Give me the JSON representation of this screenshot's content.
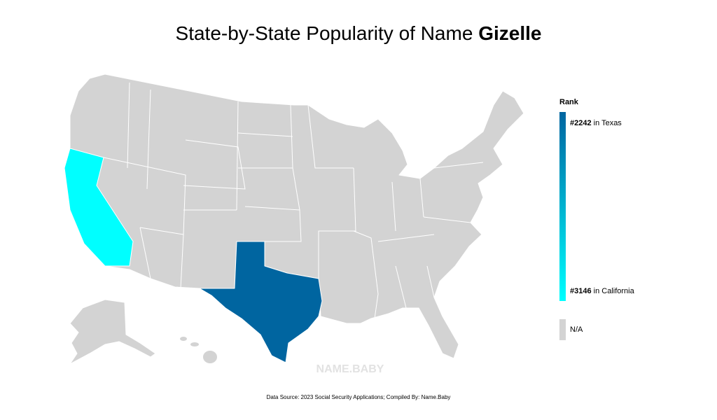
{
  "title": {
    "text": "State-by-State Popularity of Name ",
    "name": "Gizelle"
  },
  "map": {
    "na_color": "#d3d3d3",
    "high_color": "#0065a0",
    "low_color": "#00ffff"
  },
  "legend": {
    "title": "Rank",
    "high": {
      "rank": "#2242",
      "place": "in Texas"
    },
    "low": {
      "rank": "#3146",
      "place": "in California"
    },
    "na": "N/A"
  },
  "watermark": "NAME.BABY",
  "source": "Data Source: 2023 Social Security Applications; Compiled By: Name.Baby"
}
